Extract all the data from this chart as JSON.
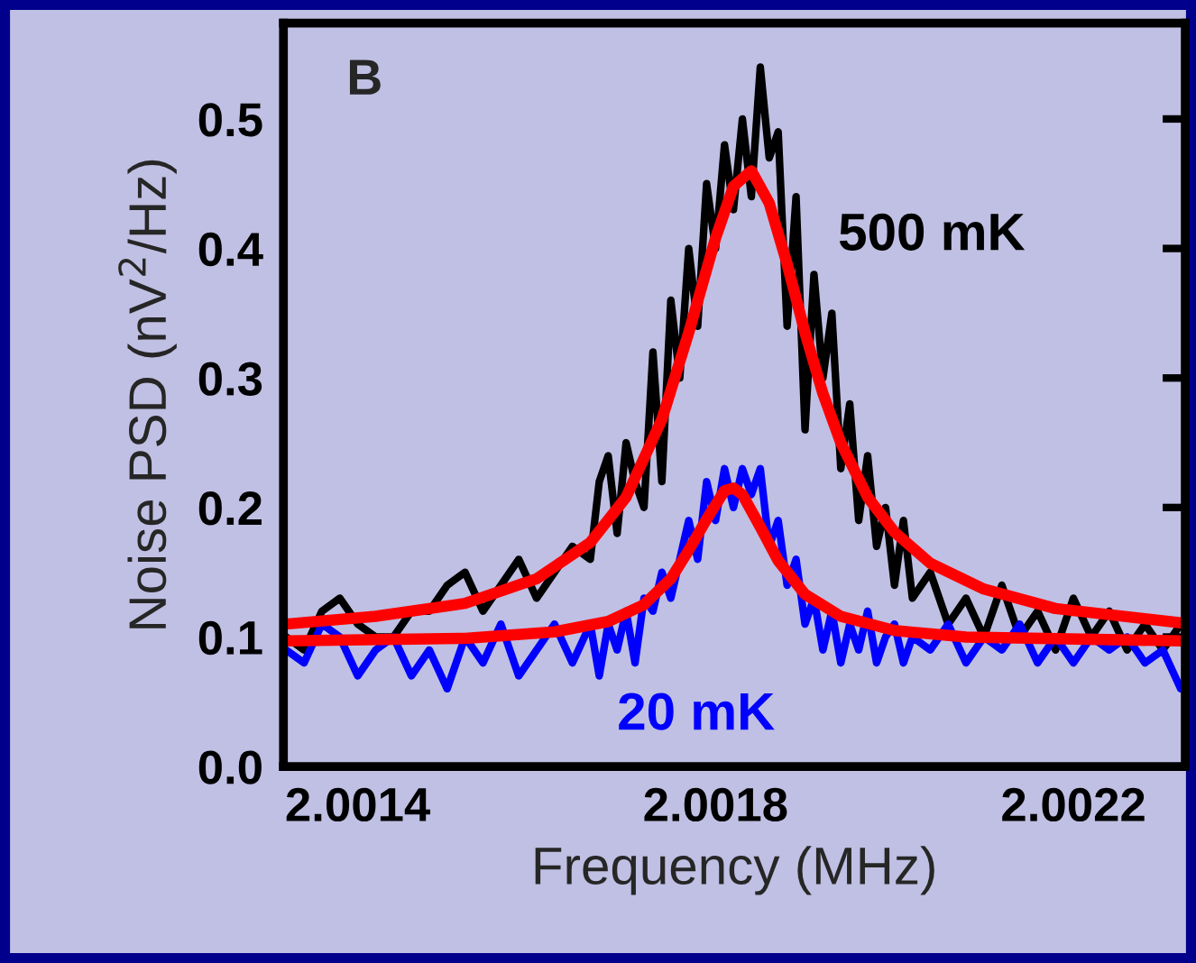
{
  "chart_data": {
    "type": "line",
    "xlabel": "Frequency (MHz)",
    "ylabel": "Noise PSD (nV$^{2}$/Hz)",
    "annotations": [
      "B"
    ],
    "xlim": [
      2.001317,
      2.002325
    ],
    "ylim": [
      0,
      0.574
    ],
    "xticks": [
      2.0014,
      2.0018,
      2.0022
    ],
    "yticks": [
      {
        "value": 0,
        "label": "0.0"
      },
      0.1,
      0.2,
      0.3,
      0.4,
      0.5
    ],
    "grid": false,
    "legend": false,
    "marker": "none",
    "line_style": "solid",
    "series": [
      {
        "name": "500 mK",
        "color": "#000000",
        "x": [
          2.00132,
          2.00134,
          2.00136,
          2.00138,
          2.0014,
          2.00142,
          2.00144,
          2.00146,
          2.00148,
          2.0015,
          2.00152,
          2.00154,
          2.00156,
          2.00158,
          2.0016,
          2.00162,
          2.00164,
          2.00166,
          2.00167,
          2.00168,
          2.00169,
          2.0017,
          2.00171,
          2.00172,
          2.00173,
          2.00174,
          2.00175,
          2.00176,
          2.00177,
          2.00178,
          2.00179,
          2.0018,
          2.00181,
          2.00182,
          2.00183,
          2.00184,
          2.00185,
          2.00186,
          2.00187,
          2.00188,
          2.00189,
          2.0019,
          2.00191,
          2.00192,
          2.00193,
          2.00194,
          2.00195,
          2.00196,
          2.00197,
          2.00198,
          2.00199,
          2.002,
          2.00201,
          2.00202,
          2.00204,
          2.00206,
          2.00208,
          2.0021,
          2.00212,
          2.00214,
          2.00216,
          2.00218,
          2.0022,
          2.00222,
          2.00224,
          2.00226,
          2.00228,
          2.0023,
          2.00232
        ],
        "values": [
          0.1,
          0.09,
          0.12,
          0.13,
          0.11,
          0.1,
          0.1,
          0.12,
          0.12,
          0.14,
          0.15,
          0.12,
          0.14,
          0.16,
          0.13,
          0.15,
          0.17,
          0.16,
          0.22,
          0.24,
          0.18,
          0.25,
          0.22,
          0.2,
          0.32,
          0.22,
          0.36,
          0.3,
          0.4,
          0.34,
          0.45,
          0.4,
          0.48,
          0.43,
          0.5,
          0.44,
          0.54,
          0.47,
          0.49,
          0.34,
          0.44,
          0.26,
          0.38,
          0.3,
          0.35,
          0.23,
          0.28,
          0.19,
          0.24,
          0.17,
          0.2,
          0.14,
          0.19,
          0.13,
          0.15,
          0.11,
          0.13,
          0.1,
          0.14,
          0.1,
          0.12,
          0.09,
          0.13,
          0.1,
          0.12,
          0.09,
          0.11,
          0.09,
          0.11
        ]
      },
      {
        "name": "20 mK",
        "color": "#0000ff",
        "x": [
          2.00132,
          2.00134,
          2.00136,
          2.00138,
          2.0014,
          2.00142,
          2.00144,
          2.00146,
          2.00148,
          2.0015,
          2.00152,
          2.00154,
          2.00156,
          2.00158,
          2.0016,
          2.00162,
          2.00164,
          2.00166,
          2.00167,
          2.00168,
          2.00169,
          2.0017,
          2.00171,
          2.00172,
          2.00173,
          2.00174,
          2.00175,
          2.00176,
          2.00177,
          2.00178,
          2.00179,
          2.0018,
          2.00181,
          2.00182,
          2.00183,
          2.00184,
          2.00185,
          2.00186,
          2.00187,
          2.00188,
          2.00189,
          2.0019,
          2.00191,
          2.00192,
          2.00193,
          2.00194,
          2.00195,
          2.00196,
          2.00197,
          2.00198,
          2.00199,
          2.002,
          2.00201,
          2.00202,
          2.00204,
          2.00206,
          2.00208,
          2.0021,
          2.00212,
          2.00214,
          2.00216,
          2.00218,
          2.0022,
          2.00222,
          2.00224,
          2.00226,
          2.00228,
          2.0023,
          2.00232
        ],
        "values": [
          0.09,
          0.08,
          0.11,
          0.1,
          0.07,
          0.09,
          0.1,
          0.07,
          0.09,
          0.06,
          0.1,
          0.08,
          0.11,
          0.07,
          0.09,
          0.11,
          0.08,
          0.11,
          0.07,
          0.11,
          0.09,
          0.12,
          0.08,
          0.13,
          0.12,
          0.15,
          0.13,
          0.16,
          0.19,
          0.16,
          0.22,
          0.19,
          0.23,
          0.2,
          0.23,
          0.21,
          0.23,
          0.17,
          0.19,
          0.14,
          0.16,
          0.11,
          0.13,
          0.09,
          0.12,
          0.08,
          0.11,
          0.09,
          0.12,
          0.08,
          0.1,
          0.11,
          0.08,
          0.1,
          0.09,
          0.11,
          0.08,
          0.1,
          0.09,
          0.11,
          0.08,
          0.1,
          0.08,
          0.1,
          0.09,
          0.1,
          0.08,
          0.09,
          0.06
        ]
      },
      {
        "color": "#ff0000",
        "x": [
          2.00132,
          2.00142,
          2.00152,
          2.0016,
          2.00166,
          2.0017,
          2.00174,
          2.00177,
          2.0018,
          2.00182,
          2.00184,
          2.00186,
          2.00188,
          2.0019,
          2.00192,
          2.00194,
          2.00197,
          2.002,
          2.00204,
          2.0021,
          2.00218,
          2.00232
        ],
        "values": [
          0.11,
          0.116,
          0.126,
          0.145,
          0.173,
          0.208,
          0.268,
          0.335,
          0.408,
          0.448,
          0.46,
          0.435,
          0.388,
          0.335,
          0.288,
          0.25,
          0.208,
          0.181,
          0.157,
          0.137,
          0.122,
          0.111
        ]
      },
      {
        "color": "#ff0000",
        "x": [
          2.00132,
          2.00152,
          2.00162,
          2.00168,
          2.00172,
          2.00175,
          2.00177,
          2.00179,
          2.00181,
          2.00182,
          2.00183,
          2.00185,
          2.00187,
          2.0019,
          2.00194,
          2.002,
          2.00208,
          2.00232
        ],
        "values": [
          0.097,
          0.099,
          0.104,
          0.112,
          0.125,
          0.145,
          0.167,
          0.191,
          0.213,
          0.215,
          0.21,
          0.185,
          0.159,
          0.133,
          0.116,
          0.105,
          0.1,
          0.097
        ]
      }
    ]
  }
}
